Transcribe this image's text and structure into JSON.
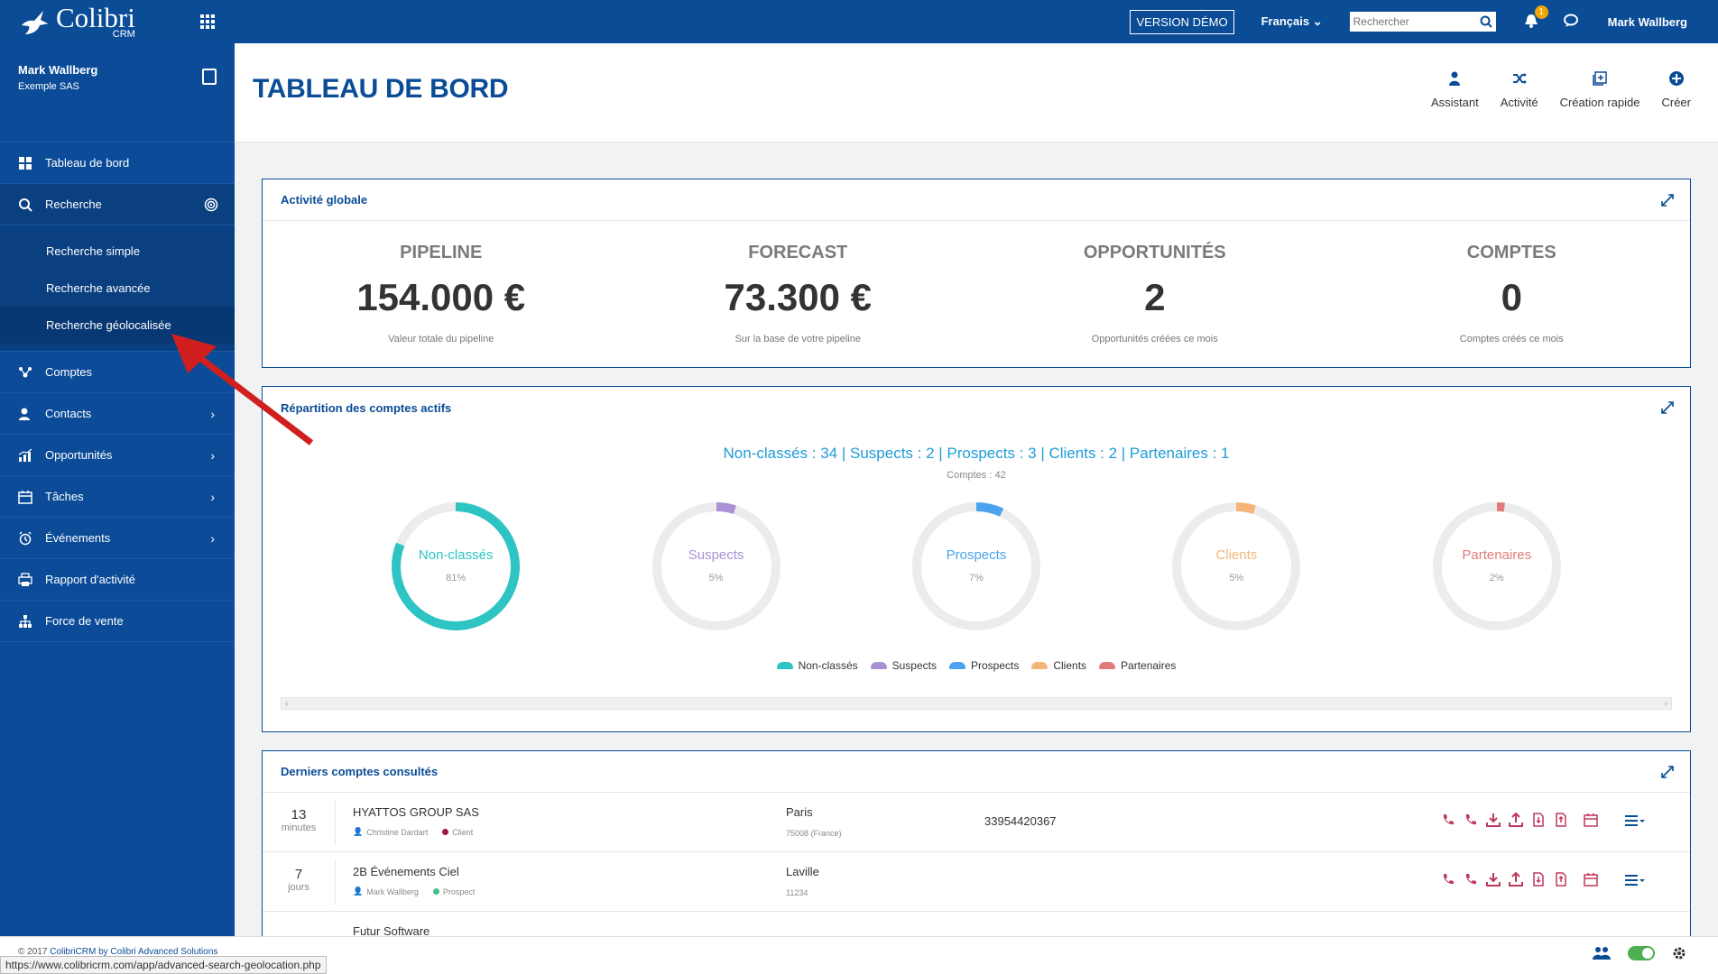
{
  "app": {
    "logo_name": "Colibri",
    "logo_sub": "CRM",
    "demo_label": "VERSION DÉMO",
    "language": "Français",
    "search_placeholder": "Rechercher",
    "notifications_count": "1",
    "user_name": "Mark Wallberg"
  },
  "sidebar": {
    "profile_name": "Mark Wallberg",
    "profile_company": "Exemple SAS",
    "items": [
      {
        "label": "Tableau de bord",
        "icon": "grid-icon"
      },
      {
        "label": "Recherche",
        "icon": "search-icon"
      },
      {
        "label": "Comptes",
        "icon": "accounts-icon"
      },
      {
        "label": "Contacts",
        "icon": "contacts-icon"
      },
      {
        "label": "Opportunités",
        "icon": "chart-icon"
      },
      {
        "label": "Tâches",
        "icon": "calendar-icon"
      },
      {
        "label": "Événements",
        "icon": "alarm-icon"
      },
      {
        "label": "Rapport d'activité",
        "icon": "print-icon"
      },
      {
        "label": "Force de vente",
        "icon": "org-icon"
      }
    ],
    "search_sub": [
      {
        "label": "Recherche simple"
      },
      {
        "label": "Recherche avancée"
      },
      {
        "label": "Recherche géolocalisée"
      }
    ]
  },
  "page": {
    "title": "TABLEAU DE BORD",
    "actions": [
      {
        "label": "Assistant",
        "icon": "assistant-icon"
      },
      {
        "label": "Activité",
        "icon": "shuffle-icon"
      },
      {
        "label": "Création rapide",
        "icon": "quick-create-icon"
      },
      {
        "label": "Créer",
        "icon": "plus-circle-icon"
      }
    ]
  },
  "activity": {
    "title": "Activité globale",
    "stats": [
      {
        "label": "PIPELINE",
        "value": "154.000 €",
        "sub": "Valeur totale du pipeline"
      },
      {
        "label": "FORECAST",
        "value": "73.300 €",
        "sub": "Sur la base de votre pipeline"
      },
      {
        "label": "OPPORTUNITÉS",
        "value": "2",
        "sub": "Opportunités créées ce mois"
      },
      {
        "label": "COMPTES",
        "value": "0",
        "sub": "Comptes créés ce mois"
      }
    ]
  },
  "repartition": {
    "title": "Répartition des comptes actifs",
    "summary": "Non-classés : 34 | Suspects : 2 | Prospects : 3 | Clients : 2 | Partenaires : 1",
    "total": "Comptes : 42",
    "donuts": [
      {
        "label": "Non-classés",
        "pct_text": "81%",
        "pct": 81,
        "color": "#2ec4c4"
      },
      {
        "label": "Suspects",
        "pct_text": "5%",
        "pct": 5,
        "color": "#a991d4"
      },
      {
        "label": "Prospects",
        "pct_text": "7%",
        "pct": 7,
        "color": "#4aa3ec"
      },
      {
        "label": "Clients",
        "pct_text": "5%",
        "pct": 5,
        "color": "#f5b57a"
      },
      {
        "label": "Partenaires",
        "pct_text": "2%",
        "pct": 2,
        "color": "#e07b7b"
      }
    ],
    "legend": [
      "Non-classés",
      "Suspects",
      "Prospects",
      "Clients",
      "Partenaires"
    ]
  },
  "recent": {
    "title": "Derniers comptes consultés",
    "rows": [
      {
        "num": "13",
        "unit": "minutes",
        "name": "HYATTOS GROUP SAS",
        "owner": "Christine Dardart",
        "status": "Client",
        "status_color": "#a0183c",
        "city": "Paris",
        "zip": "75008 (France)",
        "phone": "33954420367"
      },
      {
        "num": "7",
        "unit": "jours",
        "name": "2B Événements Ciel",
        "owner": "Mark Wallberg",
        "status": "Prospect",
        "status_color": "#3fbf8a",
        "city": "Laville",
        "zip": "11234",
        "phone": ""
      },
      {
        "num": "",
        "unit": "",
        "name": "Futur Software",
        "owner": "",
        "status": "",
        "status_color": "#ffffff",
        "city": "",
        "zip": "",
        "phone": ""
      }
    ]
  },
  "footer": {
    "copyright_prefix": "© 2017",
    "copyright_link": "ColibriCRM by Colibri Advanced Solutions",
    "status_url": "https://www.colibricrm.com/app/advanced-search-geolocation.php"
  }
}
